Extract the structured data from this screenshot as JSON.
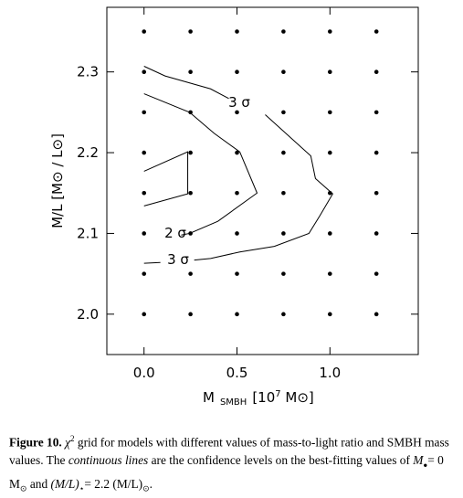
{
  "chart_data": {
    "type": "scatter",
    "ylabel": "M/L [M⊙ / L⊙]",
    "xlabel": {
      "main": "M",
      "sub": "SMBH",
      "rest": "[10",
      "sup": "7",
      "tail": " M⊙]"
    },
    "x": [
      0,
      0.25,
      0.5,
      0.75,
      1.0,
      1.25,
      0,
      0.25,
      0.5,
      0.75,
      1.0,
      1.25,
      0,
      0.25,
      0.5,
      0.75,
      1.0,
      1.25,
      0,
      0.25,
      0.5,
      0.75,
      1.0,
      1.25,
      0,
      0.25,
      0.5,
      0.75,
      1.0,
      1.25,
      0,
      0.25,
      0.5,
      0.75,
      1.0,
      1.25,
      0,
      0.25,
      0.5,
      0.75,
      1.0,
      1.25,
      0,
      0.25,
      0.5,
      0.75,
      1.0,
      1.25
    ],
    "values": [
      2.0,
      2.0,
      2.0,
      2.0,
      2.0,
      2.0,
      2.05,
      2.05,
      2.05,
      2.05,
      2.05,
      2.05,
      2.1,
      2.1,
      2.1,
      2.1,
      2.1,
      2.1,
      2.15,
      2.15,
      2.15,
      2.15,
      2.15,
      2.15,
      2.2,
      2.2,
      2.2,
      2.2,
      2.2,
      2.2,
      2.25,
      2.25,
      2.25,
      2.25,
      2.25,
      2.25,
      2.3,
      2.3,
      2.3,
      2.3,
      2.3,
      2.3,
      2.35,
      2.35,
      2.35,
      2.35,
      2.35,
      2.35
    ],
    "color": "#000000",
    "contours": [
      {
        "label": "3 σ",
        "x": [
          0,
          0.113,
          0.358,
          0.456,
          null,
          0.652,
          0.897,
          0.922,
          1.015,
          0.946,
          0.887,
          0.701,
          0.515,
          0.358,
          0.27,
          null,
          0.088,
          0
        ],
        "values": [
          2.307,
          2.295,
          2.279,
          2.267,
          null,
          2.247,
          2.196,
          2.168,
          2.149,
          2.122,
          2.1,
          2.084,
          2.077,
          2.069,
          2.067,
          null,
          2.064,
          2.063
        ]
      },
      {
        "label": "2 σ",
        "x": [
          0,
          0.245,
          0.377,
          0.515,
          0.608,
          0.397,
          0.245,
          0.2,
          null,
          0,
          null,
          0,
          0.235,
          0.235,
          0
        ],
        "values": [
          2.273,
          2.25,
          2.224,
          2.201,
          2.15,
          2.115,
          2.1,
          2.098,
          null,
          2.097,
          null,
          2.177,
          2.201,
          2.149,
          2.134
        ]
      }
    ],
    "xlim": [
      -0.2,
      1.475
    ],
    "ylim": [
      1.95,
      2.38
    ],
    "xticks": [
      {
        "value": 0,
        "label": "0.0"
      },
      0.5,
      {
        "value": 1,
        "label": "1.0"
      }
    ],
    "yticks": [
      {
        "value": 2,
        "label": "2.0"
      },
      2.1,
      2.2,
      2.3
    ]
  },
  "caption": {
    "label": "Figure 10.",
    "parts": [
      "χ",
      "2",
      " grid for models with different values of mass-to-light ratio and SMBH mass values. The ",
      "continuous lines",
      " are the confidence levels on the best-fitting values of ",
      "M",
      "●",
      "= 0 M",
      "⊙",
      " and ",
      "(M/L)",
      "⋆",
      "= 2.2 (M/L)",
      "⊙",
      "."
    ]
  }
}
